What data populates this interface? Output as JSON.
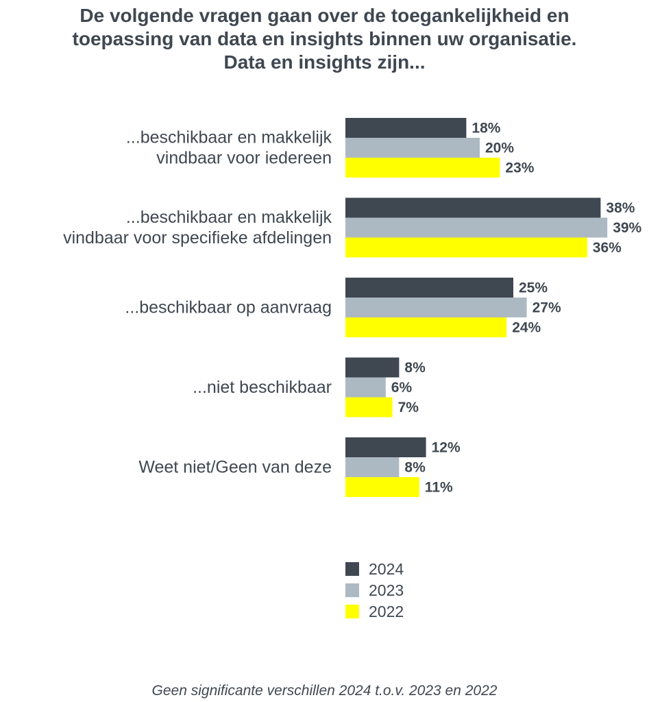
{
  "chart_data": {
    "type": "bar",
    "orientation": "horizontal",
    "title_lines": [
      "De volgende vragen gaan over de toegankelijkheid en",
      "toepassing van data en insights binnen uw organisatie.",
      "Data en insights zijn..."
    ],
    "categories": [
      [
        "...beschikbaar en makkelijk",
        "vindbaar voor iedereen"
      ],
      [
        "...beschikbaar en makkelijk",
        "vindbaar voor specifieke afdelingen"
      ],
      [
        "...beschikbaar op aanvraag"
      ],
      [
        "...niet beschikbaar"
      ],
      [
        "Weet niet/Geen van deze"
      ]
    ],
    "series": [
      {
        "name": "2024",
        "color": "#3f4751",
        "values": [
          18,
          38,
          25,
          8,
          12
        ],
        "labels": [
          "18%",
          "38%",
          "25%",
          "8%",
          "12%"
        ]
      },
      {
        "name": "2023",
        "color": "#adb9c2",
        "values": [
          20,
          39,
          27,
          6,
          8
        ],
        "labels": [
          "20%",
          "39%",
          "27%",
          "6%",
          "8%"
        ]
      },
      {
        "name": "2022",
        "color": "#ffff00",
        "values": [
          23,
          36,
          24,
          7,
          11
        ],
        "labels": [
          "23%",
          "36%",
          "24%",
          "7%",
          "11%"
        ]
      }
    ],
    "legend_position": "bottom-center",
    "grid": false,
    "footnote": "Geen significante verschillen 2024 t.o.v. 2023 en 2022"
  }
}
